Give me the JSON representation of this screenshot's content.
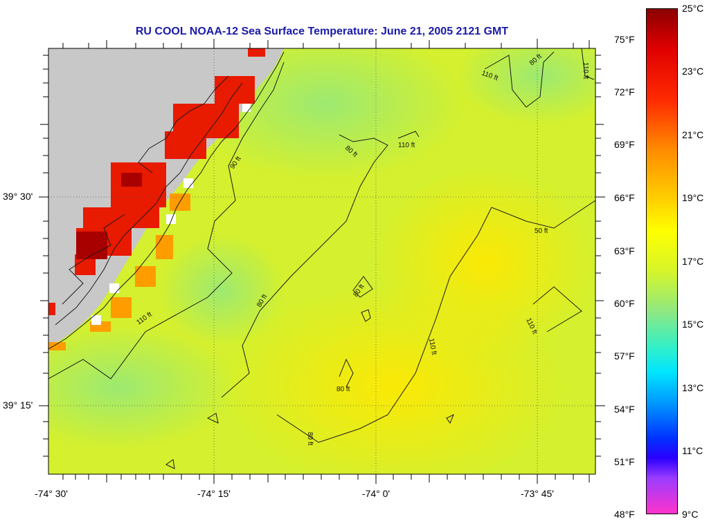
{
  "title": "RU COOL  NOAA-12  Sea Surface Temperature:  June 21, 2005 2121 GMT",
  "latitude_labels": [
    "39° 30'",
    "39° 15'"
  ],
  "longitude_labels": [
    "-74° 30'",
    "-74° 15'",
    "-74° 0'",
    "-73° 45'"
  ],
  "colorbar": {
    "fahrenheit_labels": [
      "75°F",
      "72°F",
      "69°F",
      "66°F",
      "63°F",
      "60°F",
      "57°F",
      "54°F",
      "51°F",
      "48°F"
    ],
    "celsius_labels": [
      "25°C",
      "23°C",
      "21°C",
      "19°C",
      "17°C",
      "15°C",
      "13°C",
      "11°C",
      "9°C"
    ],
    "colors": [
      "#8b0000",
      "#ff1a00",
      "#ff8c00",
      "#ffff00",
      "#c8f000",
      "#33ff99",
      "#00e5ff",
      "#0066ff",
      "#0000ff",
      "#8a4fff",
      "#ff33cc"
    ]
  },
  "contour_labels": [
    "110 ft",
    "80 ft",
    "110 ft",
    "80 ft",
    "110 ft",
    "90 ft",
    "50 ft",
    "80 ft",
    "80 ft",
    "110 ft",
    "110 ft",
    "110 ft",
    "80 ft"
  ],
  "colors": {
    "land": "#c8c8c8",
    "ocean_main": "#ccf533",
    "title": "#1a1aa8"
  }
}
